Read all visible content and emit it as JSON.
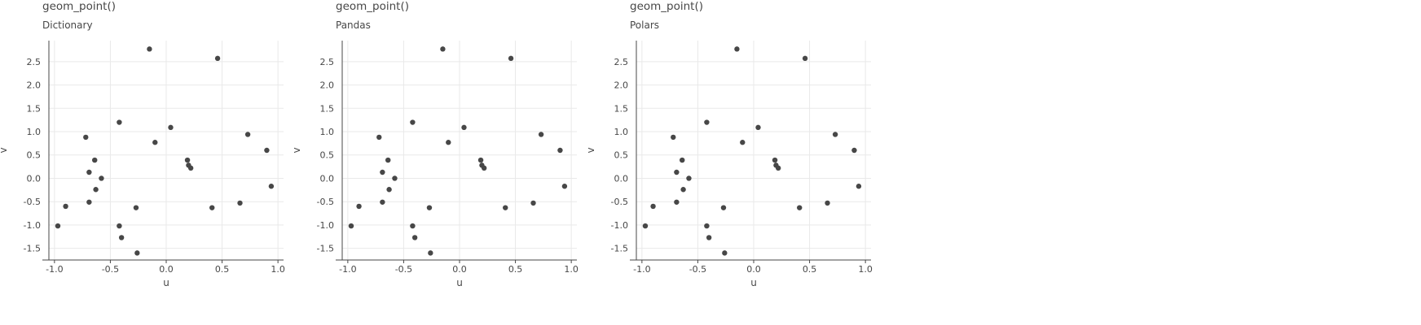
{
  "panels": [
    {
      "title": "geom_point()",
      "subtitle": "Dictionary"
    },
    {
      "title": "geom_point()",
      "subtitle": "Pandas"
    },
    {
      "title": "geom_point()",
      "subtitle": "Polars"
    }
  ],
  "chart_data": [
    {
      "type": "scatter",
      "title": "geom_point()",
      "subtitle": "Dictionary",
      "xlabel": "u",
      "ylabel": "v",
      "xlim": [
        -1.05,
        1.05
      ],
      "ylim": [
        -1.75,
        2.95
      ],
      "x_ticks": [
        -1.0,
        -0.5,
        0.0,
        0.5,
        1.0
      ],
      "x_tick_labels": [
        "-1.0",
        "-0.5",
        "0.0",
        "0.5",
        "1.0"
      ],
      "y_ticks": [
        2.5,
        2.0,
        1.5,
        1.0,
        0.5,
        0.0,
        -0.5,
        -1.0,
        -1.5
      ],
      "y_tick_labels": [
        "2.5",
        "2.0",
        "1.5",
        "1.0",
        "0.5",
        "0.0",
        "-0.5",
        "-1.0",
        "-1.5"
      ],
      "grid": true,
      "points": {
        "x": [
          -0.97,
          -0.9,
          -0.72,
          -0.69,
          -0.69,
          -0.64,
          -0.63,
          -0.58,
          -0.42,
          -0.42,
          -0.4,
          -0.27,
          -0.26,
          -0.15,
          -0.1,
          0.04,
          0.19,
          0.2,
          0.22,
          0.41,
          0.46,
          0.66,
          0.73,
          0.9,
          0.94
        ],
        "y": [
          -1.02,
          -0.6,
          0.88,
          -0.51,
          0.13,
          0.39,
          -0.24,
          0.0,
          1.2,
          -1.02,
          -1.27,
          -0.63,
          -1.6,
          2.77,
          0.77,
          1.09,
          0.39,
          0.28,
          0.22,
          -0.63,
          2.57,
          -0.53,
          0.94,
          0.6,
          -0.17
        ]
      }
    },
    {
      "type": "scatter",
      "title": "geom_point()",
      "subtitle": "Pandas",
      "xlabel": "u",
      "ylabel": "v",
      "xlim": [
        -1.05,
        1.05
      ],
      "ylim": [
        -1.75,
        2.95
      ],
      "x_ticks": [
        -1.0,
        -0.5,
        0.0,
        0.5,
        1.0
      ],
      "x_tick_labels": [
        "-1.0",
        "-0.5",
        "0.0",
        "0.5",
        "1.0"
      ],
      "y_ticks": [
        2.5,
        2.0,
        1.5,
        1.0,
        0.5,
        0.0,
        -0.5,
        -1.0,
        -1.5
      ],
      "y_tick_labels": [
        "2.5",
        "2.0",
        "1.5",
        "1.0",
        "0.5",
        "0.0",
        "-0.5",
        "-1.0",
        "-1.5"
      ],
      "grid": true,
      "points": {
        "x": [
          -0.97,
          -0.9,
          -0.72,
          -0.69,
          -0.69,
          -0.64,
          -0.63,
          -0.58,
          -0.42,
          -0.42,
          -0.4,
          -0.27,
          -0.26,
          -0.15,
          -0.1,
          0.04,
          0.19,
          0.2,
          0.22,
          0.41,
          0.46,
          0.66,
          0.73,
          0.9,
          0.94
        ],
        "y": [
          -1.02,
          -0.6,
          0.88,
          -0.51,
          0.13,
          0.39,
          -0.24,
          0.0,
          1.2,
          -1.02,
          -1.27,
          -0.63,
          -1.6,
          2.77,
          0.77,
          1.09,
          0.39,
          0.28,
          0.22,
          -0.63,
          2.57,
          -0.53,
          0.94,
          0.6,
          -0.17
        ]
      }
    },
    {
      "type": "scatter",
      "title": "geom_point()",
      "subtitle": "Polars",
      "xlabel": "u",
      "ylabel": "v",
      "xlim": [
        -1.05,
        1.05
      ],
      "ylim": [
        -1.75,
        2.95
      ],
      "x_ticks": [
        -1.0,
        -0.5,
        0.0,
        0.5,
        1.0
      ],
      "x_tick_labels": [
        "-1.0",
        "-0.5",
        "0.0",
        "0.5",
        "1.0"
      ],
      "y_ticks": [
        2.5,
        2.0,
        1.5,
        1.0,
        0.5,
        0.0,
        -0.5,
        -1.0,
        -1.5
      ],
      "y_tick_labels": [
        "2.5",
        "2.0",
        "1.5",
        "1.0",
        "0.5",
        "0.0",
        "-0.5",
        "-1.0",
        "-1.5"
      ],
      "grid": true,
      "points": {
        "x": [
          -0.97,
          -0.9,
          -0.72,
          -0.69,
          -0.69,
          -0.64,
          -0.63,
          -0.58,
          -0.42,
          -0.42,
          -0.4,
          -0.27,
          -0.26,
          -0.15,
          -0.1,
          0.04,
          0.19,
          0.2,
          0.22,
          0.41,
          0.46,
          0.66,
          0.73,
          0.9,
          0.94
        ],
        "y": [
          -1.02,
          -0.6,
          0.88,
          -0.51,
          0.13,
          0.39,
          -0.24,
          0.0,
          1.2,
          -1.02,
          -1.27,
          -0.63,
          -1.6,
          2.77,
          0.77,
          1.09,
          0.39,
          0.28,
          0.22,
          -0.63,
          2.57,
          -0.53,
          0.94,
          0.6,
          -0.17
        ]
      }
    }
  ],
  "colors": {
    "point": "#474747",
    "grid": "#e9e9e9",
    "axis": "#474747",
    "background": "#ffffff"
  }
}
